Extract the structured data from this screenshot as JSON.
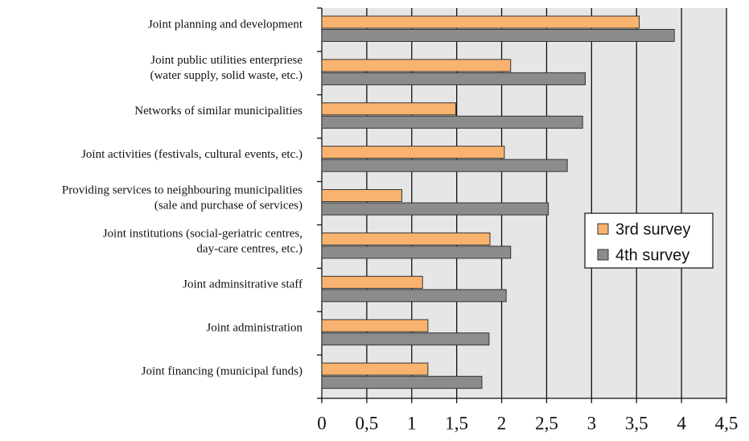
{
  "chart_data": {
    "type": "bar",
    "orientation": "horizontal",
    "categories": [
      [
        "Joint planning and development"
      ],
      [
        "Joint public utilities enterpriese",
        "(water supply, solid waste, etc.)"
      ],
      [
        "Networks of similar municipalities"
      ],
      [
        "Joint activities (festivals, cultural events, etc.)"
      ],
      [
        "Providing services to neighbouring municipalities",
        "(sale and purchase of services)"
      ],
      [
        "Joint institutions (social-geriatric centres,",
        "day-care centres, etc.)"
      ],
      [
        "Joint adminsitrative staff"
      ],
      [
        "Joint administration"
      ],
      [
        "Joint financing (municipal funds)"
      ]
    ],
    "series": [
      {
        "name": "3rd survey",
        "color": "#f9b36e",
        "values": [
          3.53,
          2.1,
          1.49,
          2.03,
          0.89,
          1.87,
          1.12,
          1.18,
          1.18
        ]
      },
      {
        "name": "4th survey",
        "color": "#8c8c8c",
        "values": [
          3.92,
          2.93,
          2.9,
          2.73,
          2.52,
          2.1,
          2.05,
          1.86,
          1.78
        ]
      }
    ],
    "xlim": [
      0,
      4.5
    ],
    "xticks": [
      0,
      {
        "value": 0.5,
        "label": "0,5"
      },
      1,
      {
        "value": 1.5,
        "label": "1,5"
      },
      2,
      {
        "value": 2.5,
        "label": "2,5"
      },
      3,
      {
        "value": 3.5,
        "label": "3,5"
      },
      4,
      {
        "value": 4.5,
        "label": "4,5"
      }
    ],
    "grid": true,
    "legend": "right"
  }
}
